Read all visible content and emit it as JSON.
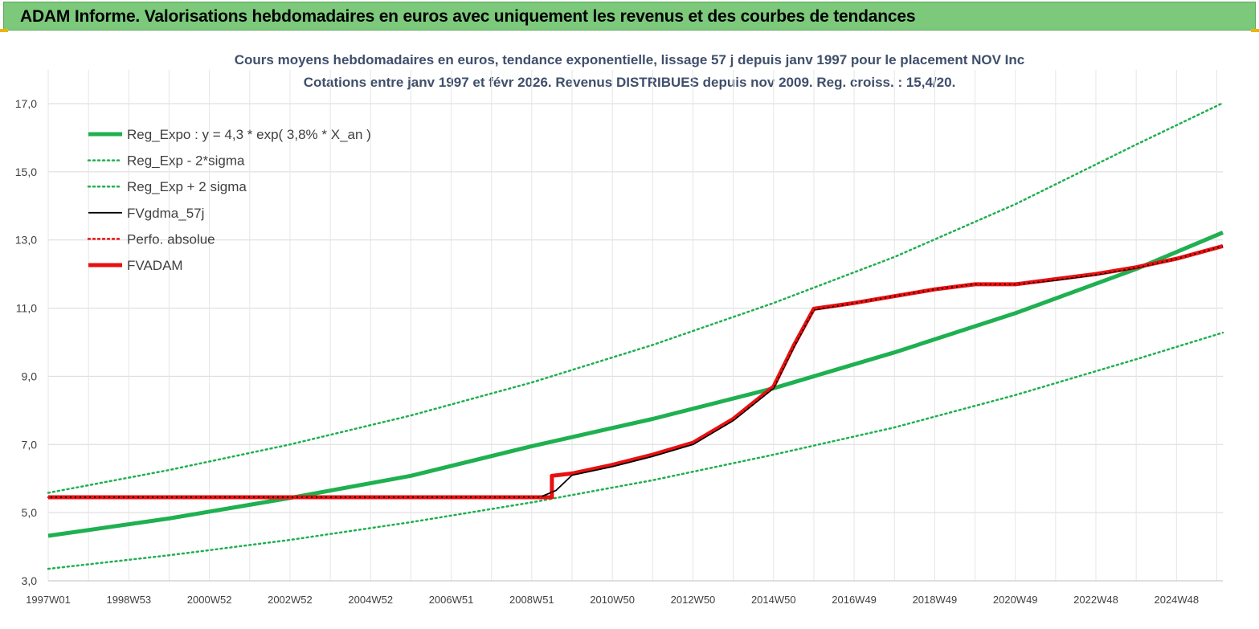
{
  "header": {
    "title": "ADAM Informe. Valorisations hebdomadaires en euros avec uniquement les revenus et des courbes de tendances"
  },
  "colors": {
    "header_bg": "#7cc97c",
    "green": "#1fb050",
    "red": "#e81010",
    "black": "#000000",
    "grid": "#d9d9d9",
    "title": "#3f4f6b"
  },
  "chart_data": {
    "type": "line",
    "title": "Cours moyens hebdomadaires en euros, tendance exponentielle, lissage 57 j depuis janv 1997 pour le placement NOV Inc",
    "subtitle": "Cotations entre janv 1997 et févr 2026. Revenus DISTRIBUES depuis nov 2009. Reg. croiss. : 15,4/20.",
    "ylim": [
      3.0,
      17.0
    ],
    "y_ticks": [
      "3,0",
      "5,0",
      "7,0",
      "9,0",
      "11,0",
      "13,0",
      "15,0",
      "17,0"
    ],
    "y_tick_values": [
      3,
      5,
      7,
      9,
      11,
      13,
      15,
      17
    ],
    "x_range": [
      1997.0,
      2026.15
    ],
    "x_ticks": [
      "1997W01",
      "1998W53",
      "2000W52",
      "2002W52",
      "2004W52",
      "2006W51",
      "2008W51",
      "2010W50",
      "2012W50",
      "2014W50",
      "2016W49",
      "2018W49",
      "2020W49",
      "2022W48",
      "2024W48"
    ],
    "x_tick_values": [
      1997.0,
      1999.0,
      2001.0,
      2003.0,
      2005.0,
      2007.0,
      2009.0,
      2011.0,
      2013.0,
      2015.0,
      2017.0,
      2019.0,
      2021.0,
      2023.0,
      2025.0
    ],
    "grid": true,
    "legend_position": "top-left",
    "series": [
      {
        "name": "Reg_Expo : y = 4,3 * exp( 3,8% *  X_an )",
        "style": "solid-thick",
        "color": "#1fb050",
        "x": [
          1997.0,
          2000.0,
          2003.0,
          2006.0,
          2009.0,
          2012.0,
          2015.0,
          2018.0,
          2021.0,
          2024.0,
          2026.15
        ],
        "values": [
          4.32,
          4.83,
          5.43,
          6.08,
          6.95,
          7.75,
          8.65,
          9.7,
          10.85,
          12.15,
          13.22
        ]
      },
      {
        "name": "Reg_Exp - 2*sigma",
        "style": "dotted",
        "color": "#1fb050",
        "x": [
          1997.0,
          2000.0,
          2003.0,
          2006.0,
          2009.0,
          2012.0,
          2015.0,
          2018.0,
          2021.0,
          2024.0,
          2026.15
        ],
        "values": [
          3.35,
          3.75,
          4.2,
          4.72,
          5.3,
          5.95,
          6.7,
          7.5,
          8.45,
          9.5,
          10.28
        ]
      },
      {
        "name": "Reg_Exp + 2 sigma",
        "style": "dotted",
        "color": "#1fb050",
        "x": [
          1997.0,
          2000.0,
          2003.0,
          2006.0,
          2009.0,
          2012.0,
          2015.0,
          2018.0,
          2021.0,
          2024.0,
          2026.15
        ],
        "values": [
          5.58,
          6.25,
          7.0,
          7.85,
          8.82,
          9.92,
          11.15,
          12.5,
          14.05,
          15.8,
          17.02
        ]
      },
      {
        "name": "FVgdma_57j",
        "style": "solid-thin",
        "color": "#000000",
        "x": [
          1997.0,
          2009.2,
          2009.6,
          2010.0,
          2011.0,
          2012.0,
          2013.0,
          2014.0,
          2015.0,
          2015.5,
          2016.0,
          2017.0,
          2018.0,
          2019.0,
          2020.0,
          2021.0,
          2022.0,
          2023.0,
          2024.0,
          2025.0,
          2026.15
        ],
        "values": [
          5.45,
          5.45,
          5.65,
          6.1,
          6.35,
          6.65,
          7.0,
          7.7,
          8.65,
          9.85,
          10.95,
          11.15,
          11.35,
          11.55,
          11.7,
          11.7,
          11.82,
          11.98,
          12.18,
          12.45,
          12.82
        ]
      },
      {
        "name": "Perfo. absolue",
        "style": "dotted",
        "color": "#e81010",
        "x": [
          1997.0,
          2009.5,
          2009.5,
          2010.0,
          2011.0,
          2012.0,
          2013.0,
          2014.0,
          2015.0,
          2015.5,
          2016.0,
          2017.0,
          2018.0,
          2019.0,
          2020.0,
          2021.0,
          2022.0,
          2023.0,
          2024.0,
          2025.0,
          2026.15
        ],
        "values": [
          5.45,
          5.45,
          6.08,
          6.15,
          6.4,
          6.7,
          7.05,
          7.75,
          8.7,
          9.9,
          10.98,
          11.15,
          11.35,
          11.55,
          11.7,
          11.7,
          11.85,
          12.0,
          12.2,
          12.45,
          12.82
        ]
      },
      {
        "name": "FVADAM",
        "style": "solid-thick",
        "color": "#e81010",
        "x": [
          1997.0,
          2009.5,
          2009.5,
          2010.0,
          2011.0,
          2012.0,
          2013.0,
          2014.0,
          2015.0,
          2015.5,
          2016.0,
          2017.0,
          2018.0,
          2019.0,
          2020.0,
          2021.0,
          2022.0,
          2023.0,
          2024.0,
          2025.0,
          2026.15
        ],
        "values": [
          5.45,
          5.45,
          6.08,
          6.15,
          6.4,
          6.7,
          7.05,
          7.75,
          8.7,
          9.9,
          10.98,
          11.15,
          11.35,
          11.55,
          11.7,
          11.7,
          11.85,
          12.0,
          12.2,
          12.45,
          12.82
        ]
      }
    ]
  }
}
